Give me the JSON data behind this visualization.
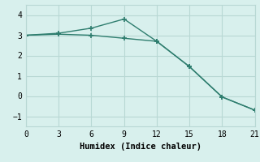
{
  "xlabel": "Humidex (Indice chaleur)",
  "line1_x": [
    0,
    3,
    6,
    9,
    12,
    15,
    18,
    21
  ],
  "line1_y": [
    3.0,
    3.1,
    3.35,
    3.8,
    2.7,
    1.45,
    -0.05,
    -0.7
  ],
  "line2_x": [
    0,
    3,
    6,
    9,
    12,
    15,
    18,
    21
  ],
  "line2_y": [
    3.0,
    3.05,
    3.0,
    2.85,
    2.7,
    1.45,
    -0.05,
    -0.7
  ],
  "line_color": "#2e7d6e",
  "bg_color": "#d8f0ed",
  "grid_color": "#b8d8d4",
  "xlim": [
    0,
    21
  ],
  "ylim": [
    -1.5,
    4.5
  ],
  "xticks": [
    0,
    3,
    6,
    9,
    12,
    15,
    18,
    21
  ],
  "yticks": [
    -1,
    0,
    1,
    2,
    3,
    4
  ],
  "marker": "+"
}
